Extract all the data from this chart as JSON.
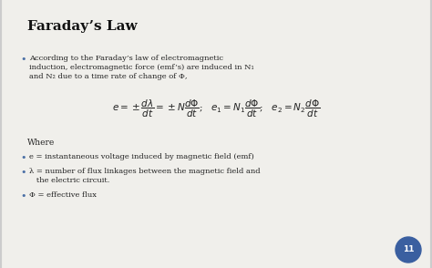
{
  "title": "Faraday’s Law",
  "bg_color": "#f0efeb",
  "title_color": "#111111",
  "text_color": "#222222",
  "bullet_color": "#4a6fa5",
  "title_fontsize": 11,
  "body_fontsize": 6.0,
  "formula_fontsize": 7.5,
  "bullet1_line1": "According to the Faraday’s law of electromagnetic",
  "bullet1_line2": "induction, electromagnetic force (emf’s) are induced in N₁",
  "bullet1_line3": "and N₂ due to a time rate of change of Φ,",
  "formula": "$e = \\pm\\dfrac{d\\lambda}{dt} = \\pm N\\dfrac{d\\Phi}{dt}$;   $e_1 = N_1\\dfrac{d\\Phi}{dt}$;   $e_2 = N_2\\dfrac{d\\Phi}{dt}$",
  "where_label": "Where",
  "bullet_e": "e = instantaneous voltage induced by magnetic field (emf)",
  "bullet_lambda_1": "λ = number of flux linkages between the magnetic field and",
  "bullet_lambda_2": "   the electric circuit.",
  "bullet_phi": "Φ = effective flux",
  "page_num": "11",
  "page_circle_color": "#3a5fa0"
}
